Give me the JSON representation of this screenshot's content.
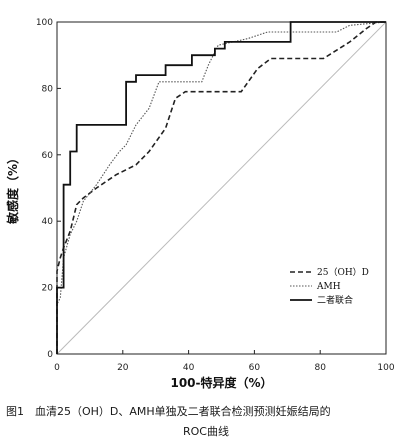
{
  "chart_data": {
    "type": "line",
    "xlabel": "100-特异度（%）",
    "ylabel": "敏感度（%）",
    "xlim": [
      0,
      100
    ],
    "ylim": [
      0,
      100
    ],
    "x_ticks": [
      "0",
      "20",
      "40",
      "60",
      "80",
      "100"
    ],
    "y_ticks": [
      "0",
      "20",
      "40",
      "60",
      "80",
      "100"
    ],
    "grid": false,
    "legend_position": "bottom-right",
    "reference_line": [
      [
        0,
        0
      ],
      [
        100,
        100
      ]
    ],
    "series": [
      {
        "name": "25（OH）D",
        "style": "dashed",
        "color": "#222222",
        "points": [
          [
            0,
            0
          ],
          [
            0,
            25
          ],
          [
            1,
            29
          ],
          [
            2,
            32
          ],
          [
            4,
            37
          ],
          [
            6,
            45
          ],
          [
            8,
            47
          ],
          [
            12,
            50
          ],
          [
            18,
            54
          ],
          [
            24,
            57
          ],
          [
            28,
            61
          ],
          [
            33,
            68
          ],
          [
            36,
            77
          ],
          [
            39,
            79
          ],
          [
            56,
            79
          ],
          [
            61,
            86
          ],
          [
            65,
            89
          ],
          [
            77,
            89
          ],
          [
            81,
            89
          ],
          [
            89,
            94
          ],
          [
            94,
            98
          ],
          [
            97,
            100
          ],
          [
            100,
            100
          ]
        ]
      },
      {
        "name": "AMH",
        "style": "dotted",
        "color": "#555555",
        "points": [
          [
            0,
            0
          ],
          [
            0,
            15
          ],
          [
            1,
            17
          ],
          [
            2,
            29
          ],
          [
            4,
            36
          ],
          [
            6,
            40
          ],
          [
            8,
            46
          ],
          [
            12,
            51
          ],
          [
            14,
            54
          ],
          [
            16,
            57
          ],
          [
            19,
            61
          ],
          [
            21,
            63
          ],
          [
            24,
            69
          ],
          [
            28,
            74
          ],
          [
            31,
            82
          ],
          [
            44,
            82
          ],
          [
            46,
            87
          ],
          [
            49,
            93
          ],
          [
            58,
            95
          ],
          [
            64,
            97
          ],
          [
            85,
            97
          ],
          [
            89,
            99
          ],
          [
            100,
            100
          ]
        ]
      },
      {
        "name": "二者联合",
        "style": "solid",
        "color": "#111111",
        "points": [
          [
            0,
            0
          ],
          [
            0,
            20
          ],
          [
            2,
            20
          ],
          [
            2,
            51
          ],
          [
            4,
            51
          ],
          [
            4,
            61
          ],
          [
            6,
            61
          ],
          [
            6,
            69
          ],
          [
            21,
            69
          ],
          [
            21,
            82
          ],
          [
            24,
            82
          ],
          [
            24,
            84
          ],
          [
            33,
            84
          ],
          [
            33,
            87
          ],
          [
            41,
            87
          ],
          [
            41,
            90
          ],
          [
            48,
            90
          ],
          [
            48,
            92
          ],
          [
            51,
            92
          ],
          [
            51,
            94
          ],
          [
            71,
            94
          ],
          [
            71,
            100
          ],
          [
            100,
            100
          ]
        ]
      }
    ]
  },
  "caption": {
    "line1": "图1　血清25（OH）D、AMH单独及二者联合检测预测妊娠结局的",
    "line2": "ROC曲线"
  }
}
